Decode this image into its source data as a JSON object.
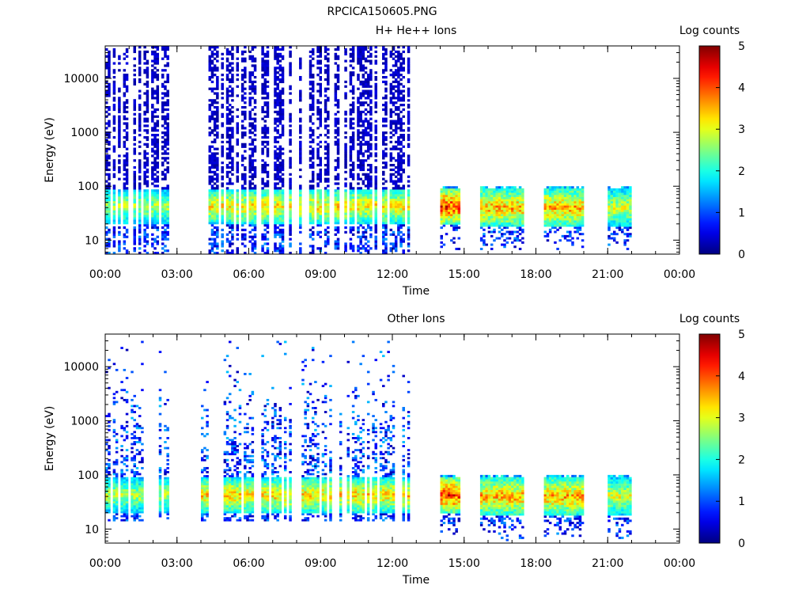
{
  "page_title": "RPCICA150605.PNG",
  "chart_data": [
    {
      "type": "heatmap",
      "title": "H+ He++ Ions",
      "xlabel": "Time",
      "ylabel": "Energy (eV)",
      "x_tick_labels": [
        "00:00",
        "03:00",
        "06:00",
        "09:00",
        "12:00",
        "15:00",
        "18:00",
        "21:00",
        "00:00"
      ],
      "y_tick_labels": [
        "10",
        "100",
        "1000",
        "10000"
      ],
      "y_scale": "log",
      "ylim": [
        5.5,
        40000
      ],
      "xlim_hours": [
        0,
        24
      ],
      "colorbar": {
        "label": "Log counts",
        "min": 0,
        "max": 5,
        "tick_labels": [
          "0",
          "1",
          "2",
          "3",
          "4",
          "5"
        ]
      },
      "data_segments": [
        {
          "start": "00:00",
          "end": "02:40",
          "energy_range": [
            5.5,
            40000
          ],
          "peak_band": [
            20,
            90
          ],
          "peak_log_counts": 3
        },
        {
          "start": "04:00",
          "end": "12:50",
          "energy_range": [
            5.5,
            40000
          ],
          "peak_band": [
            20,
            90
          ],
          "peak_log_counts": 3.5
        },
        {
          "start": "14:00",
          "end": "14:50",
          "energy_range": [
            5.5,
            100
          ],
          "peak_band": [
            20,
            90
          ],
          "peak_log_counts": 4.5
        },
        {
          "start": "15:40",
          "end": "17:30",
          "energy_range": [
            5.5,
            100
          ],
          "peak_band": [
            18,
            90
          ],
          "peak_log_counts": 3.8
        },
        {
          "start": "18:20",
          "end": "20:00",
          "energy_range": [
            5.5,
            100
          ],
          "peak_band": [
            18,
            90
          ],
          "peak_log_counts": 3.8
        },
        {
          "start": "21:00",
          "end": "22:00",
          "energy_range": [
            5.5,
            100
          ],
          "peak_band": [
            18,
            90
          ],
          "peak_log_counts": 3.2
        }
      ]
    },
    {
      "type": "heatmap",
      "title": "Other Ions",
      "xlabel": "Time",
      "ylabel": "Energy (eV)",
      "x_tick_labels": [
        "00:00",
        "03:00",
        "06:00",
        "09:00",
        "12:00",
        "15:00",
        "18:00",
        "21:00",
        "00:00"
      ],
      "y_tick_labels": [
        "10",
        "100",
        "1000",
        "10000"
      ],
      "y_scale": "log",
      "ylim": [
        5.5,
        40000
      ],
      "xlim_hours": [
        0,
        24
      ],
      "colorbar": {
        "label": "Log counts",
        "min": 0,
        "max": 5,
        "tick_labels": [
          "0",
          "1",
          "2",
          "3",
          "4",
          "5"
        ]
      },
      "data_segments": [
        {
          "start": "00:00",
          "end": "02:40",
          "energy_range": [
            14,
            30000
          ],
          "peak_band": [
            20,
            90
          ],
          "peak_log_counts": 3
        },
        {
          "start": "04:00",
          "end": "12:50",
          "energy_range": [
            14,
            30000
          ],
          "peak_band": [
            20,
            90
          ],
          "peak_log_counts": 3.6
        },
        {
          "start": "14:00",
          "end": "14:50",
          "energy_range": [
            5.5,
            100
          ],
          "peak_band": [
            20,
            90
          ],
          "peak_log_counts": 4.5
        },
        {
          "start": "15:40",
          "end": "17:30",
          "energy_range": [
            5.5,
            100
          ],
          "peak_band": [
            18,
            90
          ],
          "peak_log_counts": 3.8
        },
        {
          "start": "18:20",
          "end": "20:00",
          "energy_range": [
            5.5,
            100
          ],
          "peak_band": [
            18,
            90
          ],
          "peak_log_counts": 3.8
        },
        {
          "start": "21:00",
          "end": "22:00",
          "energy_range": [
            5.5,
            100
          ],
          "peak_band": [
            18,
            90
          ],
          "peak_log_counts": 3.2
        }
      ]
    }
  ]
}
